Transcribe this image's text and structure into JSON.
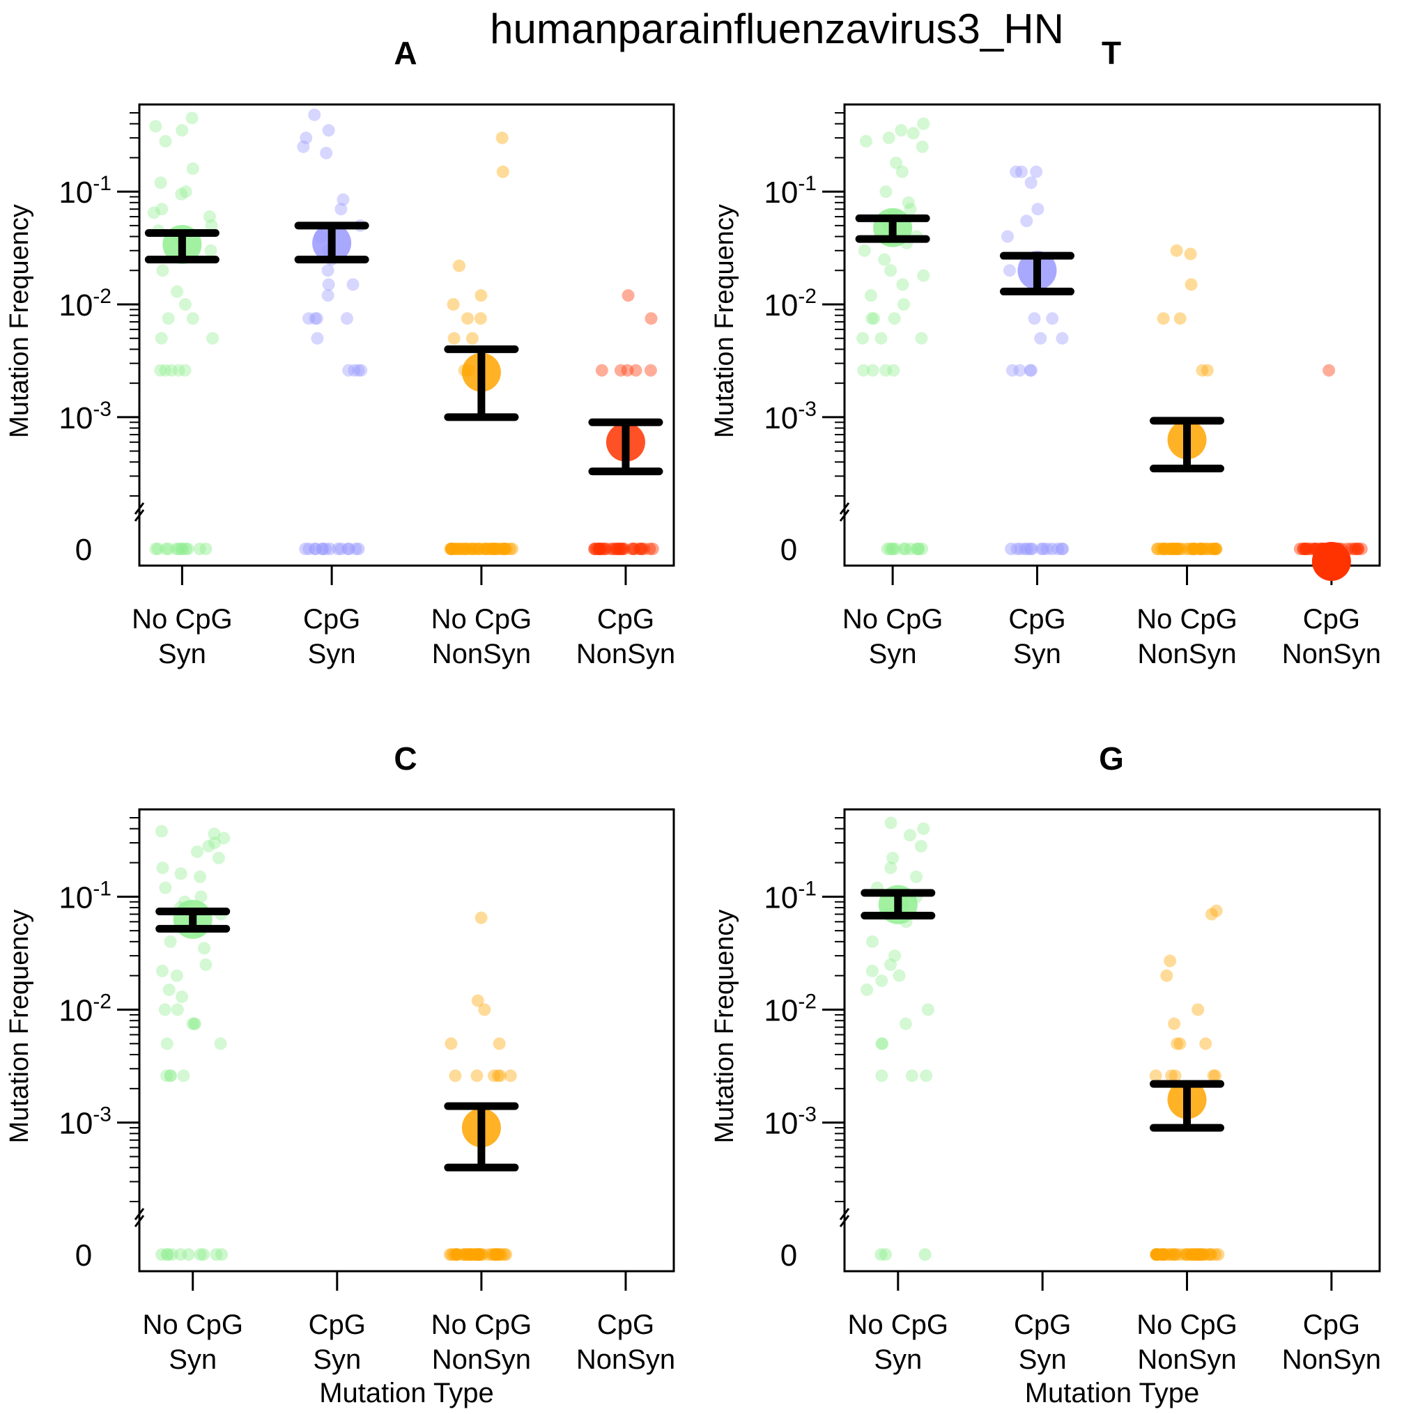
{
  "title": "humanparainfluenzavirus3_HN",
  "chart_data": {
    "type": "scatter",
    "title": "humanparainfluenzavirus3_HN",
    "ylabel": "Mutation Frequency",
    "xlabel": "Mutation Type",
    "y_scale": "log (with broken axis at 0)",
    "y_range": [
      0.0002,
      0.5
    ],
    "y_ticks": [
      {
        "value": 0.001,
        "base": "10",
        "exp": "-3"
      },
      {
        "value": 0.01,
        "base": "10",
        "exp": "-2"
      },
      {
        "value": 0.1,
        "base": "10",
        "exp": "-1"
      }
    ],
    "zero_label": "0",
    "categories": [
      {
        "line1": "No CpG",
        "line2": "Syn"
      },
      {
        "line1": "CpG",
        "line2": "Syn"
      },
      {
        "line1": "No CpG",
        "line2": "NonSyn"
      },
      {
        "line1": "CpG",
        "line2": "NonSyn"
      }
    ],
    "colors": [
      "#90EE90",
      "#9999ff",
      "#FFA500",
      "#FF3300"
    ],
    "panels": [
      {
        "label": "A",
        "series": [
          {
            "mean": 0.034,
            "ci": [
              0.025,
              0.043
            ],
            "points": [
              0.45,
              0.38,
              0.35,
              0.28,
              0.16,
              0.12,
              0.1,
              0.095,
              0.07,
              0.065,
              0.06,
              0.05,
              0.045,
              0.04,
              0.03,
              0.02,
              0.013,
              0.01,
              0.0075,
              0.0075,
              0.005,
              0.005,
              0.0026,
              0.0026,
              0.0026,
              0.0026,
              0.0026
            ],
            "zeros": 12
          },
          {
            "mean": 0.035,
            "ci": [
              0.025,
              0.05
            ],
            "points": [
              0.48,
              0.35,
              0.3,
              0.25,
              0.22,
              0.085,
              0.07,
              0.05,
              0.04,
              0.03,
              0.025,
              0.02,
              0.015,
              0.015,
              0.012,
              0.0075,
              0.0075,
              0.0075,
              0.0075,
              0.005,
              0.0026,
              0.0026,
              0.0026,
              0.0026
            ],
            "zeros": 14
          },
          {
            "mean": 0.0025,
            "ci": [
              0.001,
              0.004
            ],
            "points": [
              0.3,
              0.15,
              0.022,
              0.012,
              0.01,
              0.0075,
              0.0075,
              0.005,
              0.005,
              0.0026,
              0.0026
            ],
            "zeros": 40
          },
          {
            "mean": 0.0006,
            "ci": [
              0.00033,
              0.0009
            ],
            "points": [
              0.012,
              0.0075,
              0.0026,
              0.0026,
              0.0026,
              0.0026,
              0.0026
            ],
            "zeros": 30
          }
        ]
      },
      {
        "label": "T",
        "series": [
          {
            "mean": 0.048,
            "ci": [
              0.038,
              0.058
            ],
            "points": [
              0.4,
              0.35,
              0.33,
              0.3,
              0.28,
              0.25,
              0.18,
              0.15,
              0.1,
              0.08,
              0.07,
              0.06,
              0.05,
              0.04,
              0.035,
              0.03,
              0.025,
              0.02,
              0.018,
              0.015,
              0.012,
              0.01,
              0.0075,
              0.0075,
              0.0075,
              0.005,
              0.005,
              0.005,
              0.0026,
              0.0026,
              0.0026,
              0.0026
            ],
            "zeros": 12
          },
          {
            "mean": 0.02,
            "ci": [
              0.013,
              0.027
            ],
            "points": [
              0.15,
              0.15,
              0.15,
              0.12,
              0.07,
              0.055,
              0.04,
              0.02,
              0.0075,
              0.0075,
              0.005,
              0.005,
              0.0026,
              0.0026,
              0.0026,
              0.0026
            ],
            "zeros": 14
          },
          {
            "mean": 0.00063,
            "ci": [
              0.00035,
              0.00093
            ],
            "points": [
              0.03,
              0.028,
              0.015,
              0.0075,
              0.0075,
              0.0026,
              0.0026
            ],
            "zeros": 40
          },
          {
            "mean": 0.0,
            "ci": null,
            "points": [
              0.0026
            ],
            "zeros": 40
          }
        ]
      },
      {
        "label": "C",
        "series": [
          {
            "mean": 0.063,
            "ci": [
              0.052,
              0.074
            ],
            "points": [
              0.38,
              0.36,
              0.33,
              0.3,
              0.28,
              0.25,
              0.22,
              0.18,
              0.16,
              0.15,
              0.12,
              0.1,
              0.09,
              0.08,
              0.07,
              0.05,
              0.04,
              0.035,
              0.025,
              0.022,
              0.02,
              0.015,
              0.013,
              0.01,
              0.01,
              0.0075,
              0.0075,
              0.0075,
              0.005,
              0.005,
              0.0026,
              0.0026,
              0.0026,
              0.0026
            ],
            "zeros": 10
          },
          {
            "mean": null,
            "ci": null,
            "points": [],
            "zeros": 0
          },
          {
            "mean": 0.0009,
            "ci": [
              0.0004,
              0.0014
            ],
            "points": [
              0.065,
              0.012,
              0.01,
              0.005,
              0.005,
              0.0026,
              0.0026,
              0.0026,
              0.0026,
              0.0026,
              0.0026
            ],
            "zeros": 40
          },
          {
            "mean": null,
            "ci": null,
            "points": [],
            "zeros": 0
          }
        ]
      },
      {
        "label": "G",
        "series": [
          {
            "mean": 0.085,
            "ci": [
              0.068,
              0.108
            ],
            "points": [
              0.45,
              0.4,
              0.35,
              0.28,
              0.22,
              0.18,
              0.15,
              0.12,
              0.1,
              0.09,
              0.08,
              0.07,
              0.06,
              0.04,
              0.03,
              0.025,
              0.022,
              0.02,
              0.018,
              0.015,
              0.01,
              0.0075,
              0.005,
              0.005,
              0.0026,
              0.0026,
              0.0026
            ],
            "zeros": 3
          },
          {
            "mean": null,
            "ci": null,
            "points": [],
            "zeros": 0
          },
          {
            "mean": 0.0016,
            "ci": [
              0.0009,
              0.0022
            ],
            "points": [
              0.075,
              0.07,
              0.027,
              0.02,
              0.01,
              0.0075,
              0.005,
              0.005,
              0.005,
              0.0026,
              0.0026,
              0.0026,
              0.0026,
              0.0026
            ],
            "zeros": 40
          },
          {
            "mean": null,
            "ci": null,
            "points": [],
            "zeros": 0
          }
        ]
      }
    ]
  }
}
